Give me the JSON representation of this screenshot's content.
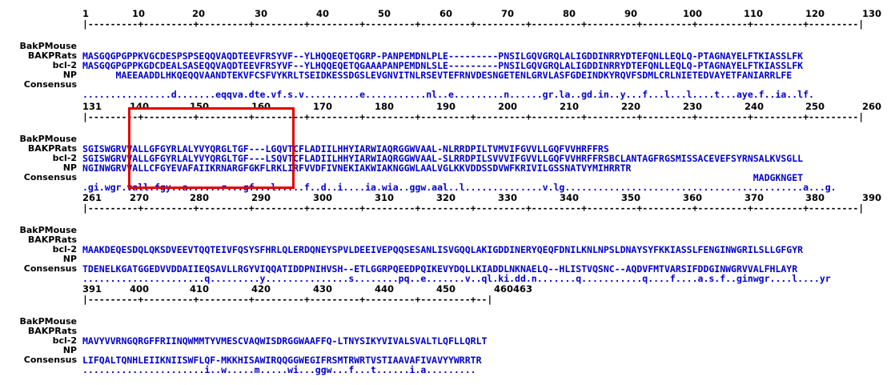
{
  "highlight_color": "#e00000",
  "blue_color": "#0000cc",
  "blocks": [
    {
      "ruler_numbers": [
        "1",
        "10",
        "20",
        "30",
        "40",
        "50",
        "60",
        "70",
        "80",
        "90",
        "100",
        "110",
        "120",
        "130"
      ],
      "rows": [
        {
          "label": "BakPMouse",
          "seq": "MASGQGPGPPKVGCDESPSPSEQQVAQDTEEVFRSYVF--YLHQQEQETQGRP-PANPEMDNLPLE---------PNSILGQVGRQLALIGDDINRRYDTEFQNLLEQLQ-PTAGNAYELFTKIASSLFK"
        },
        {
          "label": "BAKPRats",
          "seq": "MASGQGPGPPKGDCDEALSASEQQVAQDTEEVFRSYVF--YLHQQEQETQGAAAPANPEMDNLSLE---------PNSILGQVGRQLALIGDDINRRYDTEFQNLLEQLQ-PTAGNAYELFTKIASSLFK"
        },
        {
          "label": "bcl-2",
          "seq": "      MAEEAADDLHKQEQQVAANDTEKVFCSFVYKRLTSEIDKESSDGSLEVGNVITNLRSEVTEFRNVDESNGETENLGRVLASFGDEINDKYRQVFSDMLCRLNIETEDVAYETFANIARRLFE"
        },
        {
          "label": "NP",
          "seq": ""
        },
        {
          "label": "Consensus",
          "seq": "................d.......eqqva.dte.vf.s.v..........e...........nl..e.........n......gr.la..gd.in..y...f...l...l....t...aye.f..ia..lf."
        }
      ]
    },
    {
      "ruler_numbers": [
        "131",
        "140",
        "150",
        "160",
        "170",
        "180",
        "190",
        "200",
        "210",
        "220",
        "230",
        "240",
        "250",
        "260"
      ],
      "rows": [
        {
          "label": "BakPMouse",
          "seq": "SGISWGRVVALLGFGYRLALYVYQRGLTGF---LGQVTCFLADIILHHYIARWIAQRGGWVAAL-NLRRDPILTVMVIFGVVLLGQFVVHRFFRS"
        },
        {
          "label": "BAKPRats",
          "seq": "SGISWGRVVALLGFGYRLALYVYQRGLTGF---LSQVTCFLADIILHHYIARWIAQRGGWVAAL-SLRRDPILSVVVIFGVVLLGQFVVHRFFRSBCLANTAGFRGSMISSACEVEFSYRNSALKVSGLL"
        },
        {
          "label": "bcl-2",
          "seq": "NGINWGRVVALLCFGYEVAFAIIKRNARGFGKFLRKLIRFVVDFIVNEKIAKWIAKNGGWLAALVGLKKVDDSSDVWFKRIVILGSSNATVYMIHRRTR"
        },
        {
          "label": "NP",
          "seq": "                                                                                                                         MADGKNGET"
        },
        {
          "label": "Consensus",
          "seq": ".gi.wgr.vall.fgy..a......r...gf...l.....f..d..i....ia.wia..ggw.aal..l..............v.lg...........................................a...g."
        }
      ]
    },
    {
      "ruler_numbers": [
        "261",
        "270",
        "280",
        "290",
        "300",
        "310",
        "320",
        "330",
        "340",
        "350",
        "360",
        "370",
        "380",
        "390"
      ],
      "rows": [
        {
          "label": "BakPMouse",
          "seq": ""
        },
        {
          "label": "BAKPRats",
          "seq": "MAAKDEQESDQLQKSDVEEVTQQTEIVFQSYSFHRLQLERDQNEYSPVLDEEIVEPQQSESANLISVGQQLAKIGDDINERYQEQFDNILKNLNPSLDNAYSYFKKIASSLFENGINWGRILSLLGFGYR"
        },
        {
          "label": "bcl-2",
          "seq": ""
        },
        {
          "label": "NP",
          "seq": "TDENELKGATGGEDVVDDAIIEQSAVLLRGYVIQQATIDDPNIHVSH--ETLGGRPQEEDPQIKEVYDQLLKIADDLNKNAELQ--HLISTVQSNC--AQDVFMTVARSIFDDGINWGRVVALFHLAYR"
        },
        {
          "label": "Consensus",
          "seq": "......................q.........y...............s........pq..e.......v..ql.ki.dd.n.......q...........q....f....a.s.f..ginwgr....l....yr"
        }
      ]
    },
    {
      "ruler_numbers": [
        "391",
        "400",
        "410",
        "420",
        "430",
        "440",
        "450",
        "460463"
      ],
      "rows": [
        {
          "label": "BakPMouse",
          "seq": ""
        },
        {
          "label": "BAKPRats",
          "seq": "MAVYVVRNGQRGFFRIINQWMMTYVMESCVAQWISDRGGWAAFFQ-LTNYSIKYVIVALSVALTLQFLLQRLT"
        },
        {
          "label": "bcl-2",
          "seq": ""
        },
        {
          "label": "NP",
          "seq": "LIFQALTQNHLEIIKNIISWFLQF-MKKHISAWIRQQGGWEGIFRSMTRWRTVSTIAAVAFIVAVYYWRRTR"
        },
        {
          "label": "Consensus",
          "seq": "......................i..w.....m.....wi...ggw...f...t......i.a........."
        }
      ]
    }
  ]
}
